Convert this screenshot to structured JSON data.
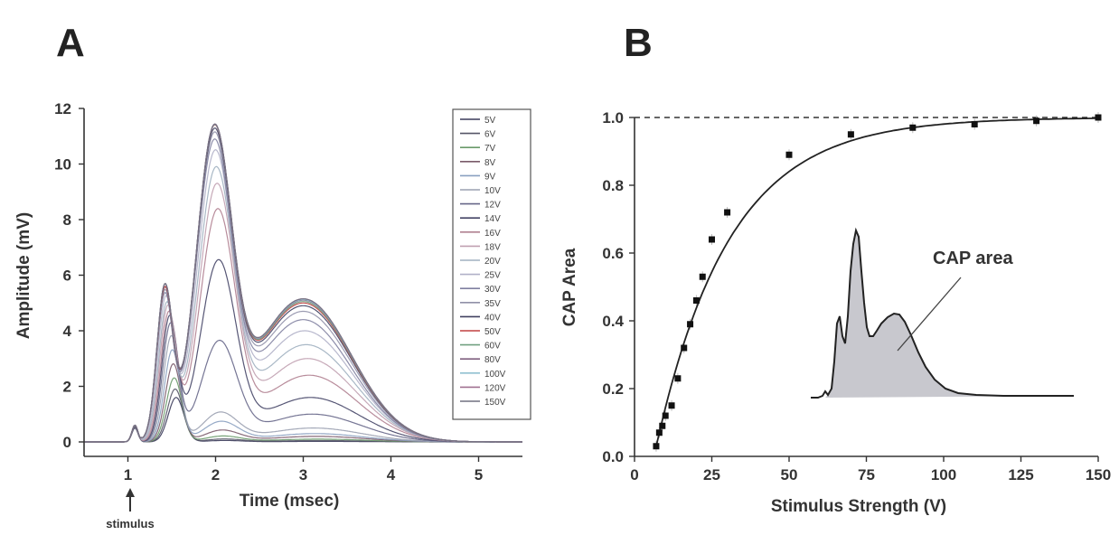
{
  "panels": {
    "a_letter": "A",
    "b_letter": "B"
  },
  "chart_data": [
    {
      "type": "line",
      "xlabel": "Time (msec)",
      "ylabel": "Amplitude (mV)",
      "xlim": [
        0.5,
        5.5
      ],
      "ylim": [
        -0.3,
        12
      ],
      "x_ticks": [
        "1",
        "2",
        "3",
        "4",
        "5"
      ],
      "y_ticks": [
        "0",
        "2",
        "4",
        "6",
        "8",
        "10",
        "12"
      ],
      "annotation": "stimulus",
      "annotation_x": 1.0,
      "legend_position": "top-right",
      "series": [
        {
          "name": "5V",
          "peaks": [
            0.5,
            1.6,
            0.05,
            0.02
          ],
          "color": "#3a3a5a"
        },
        {
          "name": "6V",
          "peaks": [
            0.55,
            1.9,
            0.1,
            0.05
          ],
          "color": "#555566"
        },
        {
          "name": "7V",
          "peaks": [
            0.6,
            2.3,
            0.2,
            0.1
          ],
          "color": "#6a9a6a"
        },
        {
          "name": "8V",
          "peaks": [
            0.6,
            2.8,
            0.4,
            0.2
          ],
          "color": "#7a5a6a"
        },
        {
          "name": "9V",
          "peaks": [
            0.6,
            3.3,
            0.7,
            0.3
          ],
          "color": "#8aa0c0"
        },
        {
          "name": "10V",
          "peaks": [
            0.6,
            3.8,
            1.0,
            0.5
          ],
          "color": "#9aa0b0"
        },
        {
          "name": "12V",
          "peaks": [
            0.6,
            4.2,
            3.5,
            1.0
          ],
          "color": "#666688"
        },
        {
          "name": "14V",
          "peaks": [
            0.6,
            4.4,
            6.3,
            1.6
          ],
          "color": "#444466"
        },
        {
          "name": "16V",
          "peaks": [
            0.6,
            4.5,
            8.0,
            2.4
          ],
          "color": "#b08090"
        },
        {
          "name": "18V",
          "peaks": [
            0.6,
            4.7,
            8.8,
            3.0
          ],
          "color": "#c0a0b0"
        },
        {
          "name": "20V",
          "peaks": [
            0.6,
            4.8,
            9.3,
            3.5
          ],
          "color": "#a0b0c0"
        },
        {
          "name": "25V",
          "peaks": [
            0.6,
            5.0,
            9.8,
            4.0
          ],
          "color": "#b0b0c8"
        },
        {
          "name": "30V",
          "peaks": [
            0.6,
            5.1,
            10.1,
            4.4
          ],
          "color": "#8080a0"
        },
        {
          "name": "35V",
          "peaks": [
            0.6,
            5.2,
            10.3,
            4.7
          ],
          "color": "#9090a8"
        },
        {
          "name": "40V",
          "peaks": [
            0.6,
            5.3,
            10.4,
            4.9
          ],
          "color": "#404060"
        },
        {
          "name": "50V",
          "peaks": [
            0.6,
            5.3,
            10.5,
            5.0
          ],
          "color": "#c04040"
        },
        {
          "name": "60V",
          "peaks": [
            0.6,
            5.4,
            10.5,
            5.05
          ],
          "color": "#70a080"
        },
        {
          "name": "80V",
          "peaks": [
            0.6,
            5.4,
            10.5,
            5.1
          ],
          "color": "#806080"
        },
        {
          "name": "100V",
          "peaks": [
            0.6,
            5.4,
            10.5,
            5.12
          ],
          "color": "#90c0d0"
        },
        {
          "name": "120V",
          "peaks": [
            0.6,
            5.4,
            10.5,
            5.15
          ],
          "color": "#a07090"
        },
        {
          "name": "150V",
          "peaks": [
            0.6,
            5.4,
            10.5,
            5.15
          ],
          "color": "#707080"
        }
      ]
    },
    {
      "type": "scatter",
      "xlabel": "Stimulus Strength (V)",
      "ylabel": "CAP Area",
      "xlim": [
        0,
        150
      ],
      "ylim": [
        0,
        1.0
      ],
      "x_ticks": [
        "0",
        "25",
        "50",
        "75",
        "100",
        "125",
        "150"
      ],
      "y_ticks": [
        "0.0",
        "0.2",
        "0.4",
        "0.6",
        "0.8",
        "1.0"
      ],
      "reference_line": 1.0,
      "points": [
        {
          "x": 7,
          "y": 0.03
        },
        {
          "x": 8,
          "y": 0.07
        },
        {
          "x": 9,
          "y": 0.09
        },
        {
          "x": 10,
          "y": 0.12
        },
        {
          "x": 12,
          "y": 0.15
        },
        {
          "x": 14,
          "y": 0.23
        },
        {
          "x": 16,
          "y": 0.32
        },
        {
          "x": 18,
          "y": 0.39
        },
        {
          "x": 20,
          "y": 0.46
        },
        {
          "x": 22,
          "y": 0.53
        },
        {
          "x": 25,
          "y": 0.64
        },
        {
          "x": 30,
          "y": 0.72
        },
        {
          "x": 50,
          "y": 0.89
        },
        {
          "x": 70,
          "y": 0.95
        },
        {
          "x": 90,
          "y": 0.97
        },
        {
          "x": 110,
          "y": 0.98
        },
        {
          "x": 130,
          "y": 0.99
        },
        {
          "x": 150,
          "y": 1.0
        }
      ],
      "fit": "exponential saturation",
      "inset_label": "CAP area"
    }
  ]
}
